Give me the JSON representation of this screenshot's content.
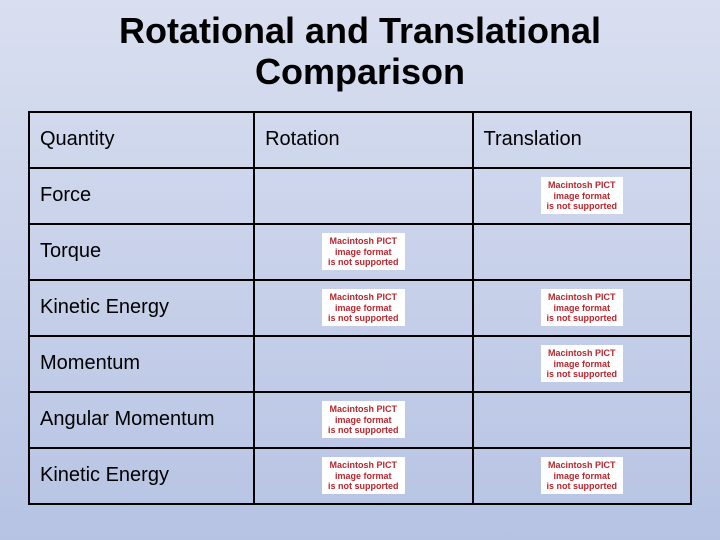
{
  "title_line1": "Rotational and Translational",
  "title_line2": "Comparison",
  "headers": {
    "quantity": "Quantity",
    "rotation": "Rotation",
    "translation": "Translation"
  },
  "rows": [
    {
      "label": "Force",
      "rotation_pict": false,
      "translation_pict": true
    },
    {
      "label": "Torque",
      "rotation_pict": true,
      "translation_pict": false
    },
    {
      "label": "Kinetic Energy",
      "rotation_pict": true,
      "translation_pict": true
    },
    {
      "label": "Momentum",
      "rotation_pict": false,
      "translation_pict": true
    },
    {
      "label": "Angular Momentum",
      "rotation_pict": true,
      "translation_pict": false
    },
    {
      "label": "Kinetic Energy",
      "rotation_pict": true,
      "translation_pict": true
    }
  ],
  "pict_error": {
    "line1": "Macintosh PICT",
    "line2": "image format",
    "line3": "is not supported"
  },
  "colors": {
    "bg_top": "#d9dff0",
    "bg_bottom": "#b6c3e3",
    "border": "#000000",
    "text": "#000000",
    "pict_bg": "#ffffff",
    "pict_text": "#b8272e"
  }
}
